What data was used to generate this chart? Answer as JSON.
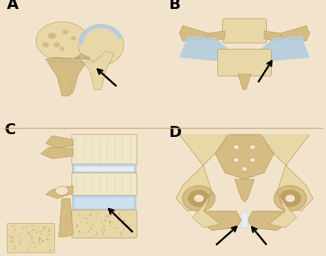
{
  "bg_color": "#f2e4cc",
  "divider_color": "#c8aa80",
  "panel_labels": [
    "A",
    "B",
    "C",
    "D"
  ],
  "label_fontsize": 16,
  "label_fontweight": "bold",
  "label_color": "#000000",
  "arrow_color": "#000000",
  "bone_base": "#d4bc82",
  "bone_light": "#e8d8a8",
  "bone_lighter": "#f0e8c8",
  "bone_dark": "#b09050",
  "bone_shadow": "#c0a060",
  "cartilage_blue": "#b0cce0",
  "cartilage_light": "#d0e4f0",
  "disc_white": "#e8eef2",
  "disc_gray": "#c8d4dc",
  "spongy_color": "#d8c898"
}
